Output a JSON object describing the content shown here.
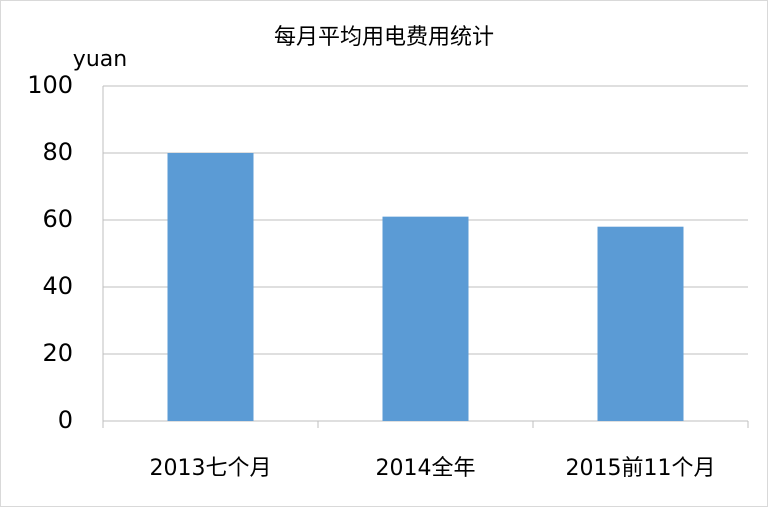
{
  "chart_data": {
    "type": "bar",
    "title": "每月平均用电费用统计",
    "y_label": "yuan",
    "categories": [
      "2013七个月",
      "2014全年",
      "2015前11个月"
    ],
    "values": [
      80,
      61,
      58
    ],
    "color": "#5b9bd5",
    "ylim": [
      0,
      100
    ],
    "yticks": [
      0,
      20,
      40,
      60,
      80,
      100
    ],
    "grid": true
  }
}
